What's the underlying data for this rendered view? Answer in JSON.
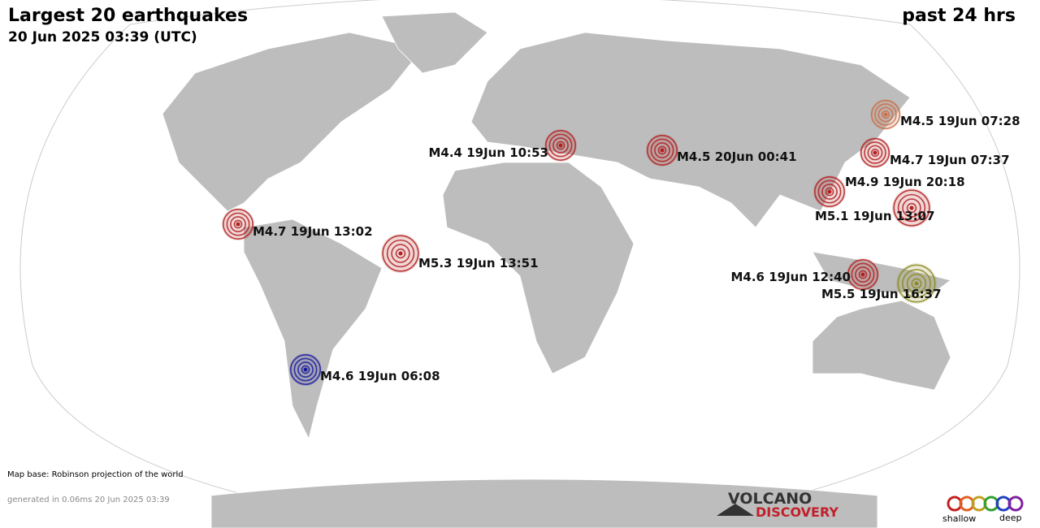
{
  "header": {
    "title": "Largest 20 earthquakes",
    "timestamp": "20 Jun 2025 03:39 (UTC)",
    "period": "past 24 hrs"
  },
  "quakes": [
    {
      "label": "M4.5 19Jun 07:28",
      "color": "#c8704a"
    },
    {
      "label": "M4.4 19Jun 10:53",
      "color": "#b02020"
    },
    {
      "label": "M4.5 20Jun 00:41",
      "color": "#b02020"
    },
    {
      "label": "M4.7 19Jun 07:37",
      "color": "#b02020"
    },
    {
      "label": "M4.9 19Jun 20:18",
      "color": "#b02020"
    },
    {
      "label": "M5.1 19Jun 13:07",
      "color": "#b02020"
    },
    {
      "label": "M4.7 19Jun 13:02",
      "color": "#b02020"
    },
    {
      "label": "M5.3 19Jun 13:51",
      "color": "#b02020"
    },
    {
      "label": "M4.6 19Jun 12:40",
      "color": "#b02020"
    },
    {
      "label": "M5.5 19Jun 16:37",
      "color": "#8a8a20"
    },
    {
      "label": "M4.6 19Jun 06:08",
      "color": "#1a1a9a"
    }
  ],
  "footer": {
    "map_base": "Map base: Robinson projection of the world",
    "generated": "generated in 0.06ms 20 Jun 2025 03:39",
    "logo_top": "VOLCANO",
    "logo_bottom": "DISCOVERY",
    "legend_shallow": "shallow",
    "legend_deep": "deep"
  }
}
